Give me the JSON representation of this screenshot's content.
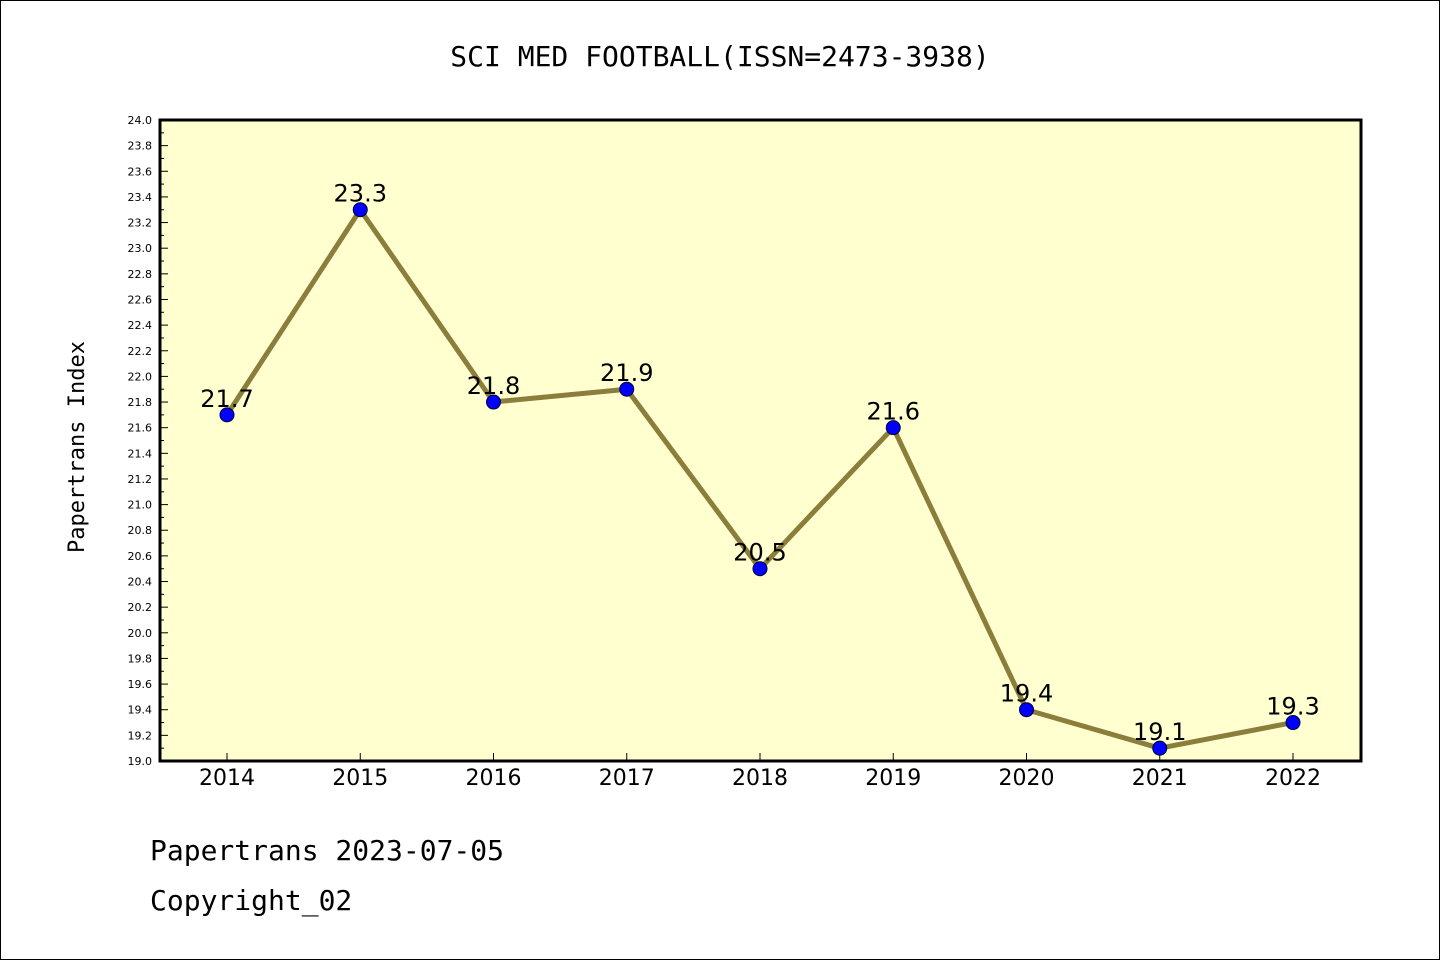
{
  "chart_data": {
    "type": "line",
    "title": "SCI MED FOOTBALL(ISSN=2473-3938)",
    "xlabel": "",
    "ylabel": "Papertrans Index",
    "categories": [
      "2014",
      "2015",
      "2016",
      "2017",
      "2018",
      "2019",
      "2020",
      "2021",
      "2022"
    ],
    "series": [
      {
        "values": [
          21.7,
          23.3,
          21.8,
          21.9,
          20.5,
          21.6,
          19.4,
          19.1,
          19.3
        ]
      }
    ],
    "data_labels": [
      "21.7",
      "23.3",
      "21.8",
      "21.9",
      "20.5",
      "21.6",
      "19.4",
      "19.1",
      "19.3"
    ],
    "ylim": [
      19.0,
      24.0
    ],
    "yticks": [
      "19.0",
      "19.2",
      "19.4",
      "19.6",
      "19.8",
      "20.0",
      "20.2",
      "20.4",
      "20.6",
      "20.8",
      "21.0",
      "21.2",
      "21.4",
      "21.6",
      "21.8",
      "22.0",
      "22.2",
      "22.4",
      "22.6",
      "22.8",
      "23.0",
      "23.2",
      "23.4",
      "23.6",
      "23.8",
      "24.0"
    ],
    "grid": false,
    "colors": {
      "plot_bg": "#ffffd0",
      "line": "#8b7d3a",
      "marker": "#0000ff"
    }
  },
  "footer": {
    "line1": "Papertrans 2023-07-05",
    "line2": "Copyright_02"
  }
}
